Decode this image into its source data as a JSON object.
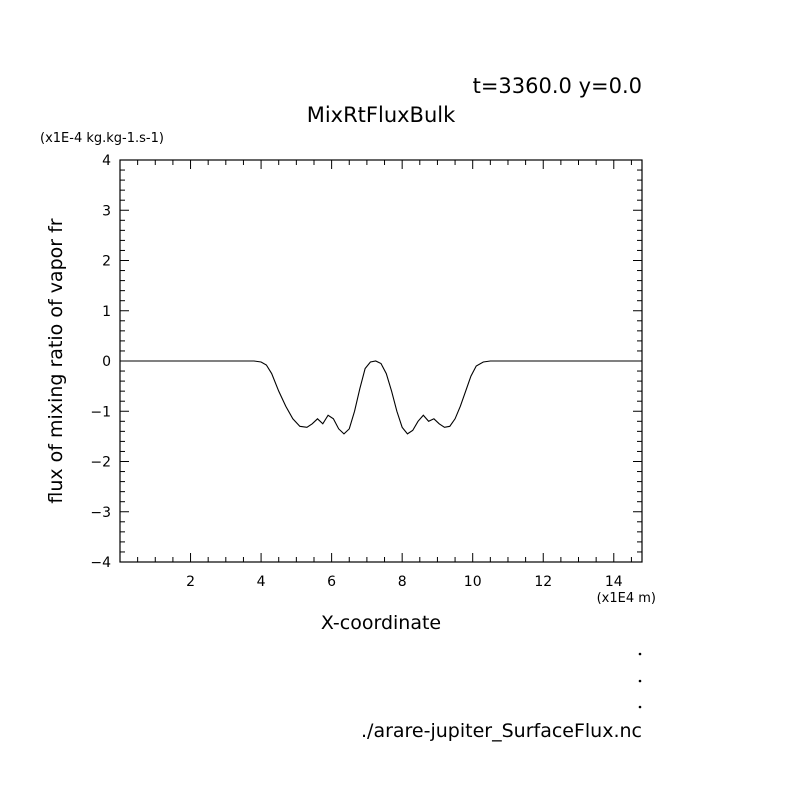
{
  "header": {
    "time_info": "t=3360.0 y=0.0",
    "source_file": "./arare-jupiter_SurfaceFlux.nc"
  },
  "chart_data": {
    "type": "line",
    "title": "MixRtFluxBulk",
    "xlabel": "X-coordinate",
    "ylabel": "flux of mixing ratio of vapor fr",
    "x_unit": "(x1E4 m)",
    "y_unit": "(x1E-4 kg.kg-1.s-1)",
    "xlim": [
      0,
      14.8
    ],
    "ylim": [
      -4,
      4
    ],
    "x_ticks": [
      2,
      4,
      6,
      8,
      10,
      12,
      14
    ],
    "x_tick_labels": [
      "2",
      "4",
      "6",
      "8",
      "10",
      "12",
      "14"
    ],
    "y_ticks": [
      -4,
      -3,
      -2,
      -1,
      0,
      1,
      2,
      3,
      4
    ],
    "y_tick_labels": [
      "−4",
      "−3",
      "−2",
      "−1",
      "0",
      "1",
      "2",
      "3",
      "4"
    ],
    "grid": false,
    "series": [
      {
        "color": "#000000",
        "x": [
          0.0,
          1.0,
          2.0,
          3.0,
          3.8,
          4.0,
          4.15,
          4.3,
          4.5,
          4.7,
          4.9,
          5.1,
          5.3,
          5.45,
          5.6,
          5.75,
          5.9,
          6.05,
          6.2,
          6.35,
          6.5,
          6.65,
          6.8,
          6.95,
          7.1,
          7.25,
          7.4,
          7.55,
          7.7,
          7.85,
          8.0,
          8.15,
          8.3,
          8.45,
          8.6,
          8.75,
          8.9,
          9.05,
          9.2,
          9.35,
          9.5,
          9.65,
          9.8,
          9.95,
          10.1,
          10.3,
          10.5,
          10.7,
          10.9,
          11.0,
          11.2,
          12.0,
          13.0,
          14.0,
          14.8
        ],
        "y": [
          0,
          0,
          0,
          0,
          0,
          -0.02,
          -0.08,
          -0.25,
          -0.6,
          -0.9,
          -1.15,
          -1.3,
          -1.32,
          -1.25,
          -1.15,
          -1.25,
          -1.08,
          -1.15,
          -1.35,
          -1.45,
          -1.35,
          -1.0,
          -0.55,
          -0.15,
          -0.02,
          0.0,
          -0.05,
          -0.25,
          -0.6,
          -1.0,
          -1.32,
          -1.45,
          -1.38,
          -1.2,
          -1.08,
          -1.2,
          -1.15,
          -1.25,
          -1.32,
          -1.3,
          -1.15,
          -0.9,
          -0.6,
          -0.3,
          -0.1,
          -0.02,
          0,
          0,
          0,
          0,
          0,
          0,
          0,
          0,
          0
        ]
      }
    ]
  }
}
